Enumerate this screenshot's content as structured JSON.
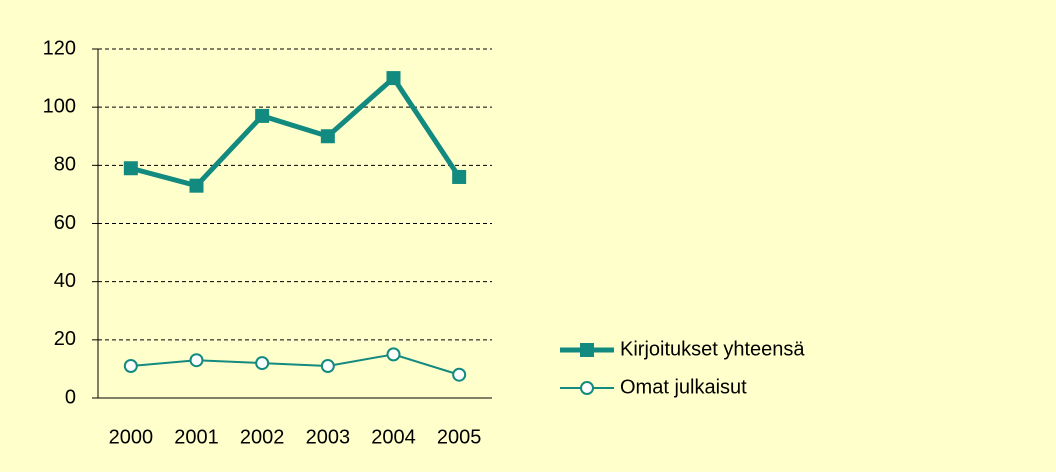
{
  "chart_data": {
    "type": "line",
    "categories": [
      "2000",
      "2001",
      "2002",
      "2003",
      "2004",
      "2005"
    ],
    "series": [
      {
        "name": "Kirjoitukset yhteensä",
        "color": "#138a80",
        "marker": "square",
        "values": [
          79,
          73,
          97,
          90,
          110,
          76
        ]
      },
      {
        "name": "Omat julkaisut",
        "color": "#138a80",
        "marker": "circle",
        "values": [
          11,
          13,
          12,
          11,
          15,
          8
        ]
      }
    ],
    "ylim": [
      0,
      120
    ],
    "yticks": [
      0,
      20,
      40,
      60,
      80,
      100,
      120
    ],
    "grid": true,
    "legend": "right"
  }
}
